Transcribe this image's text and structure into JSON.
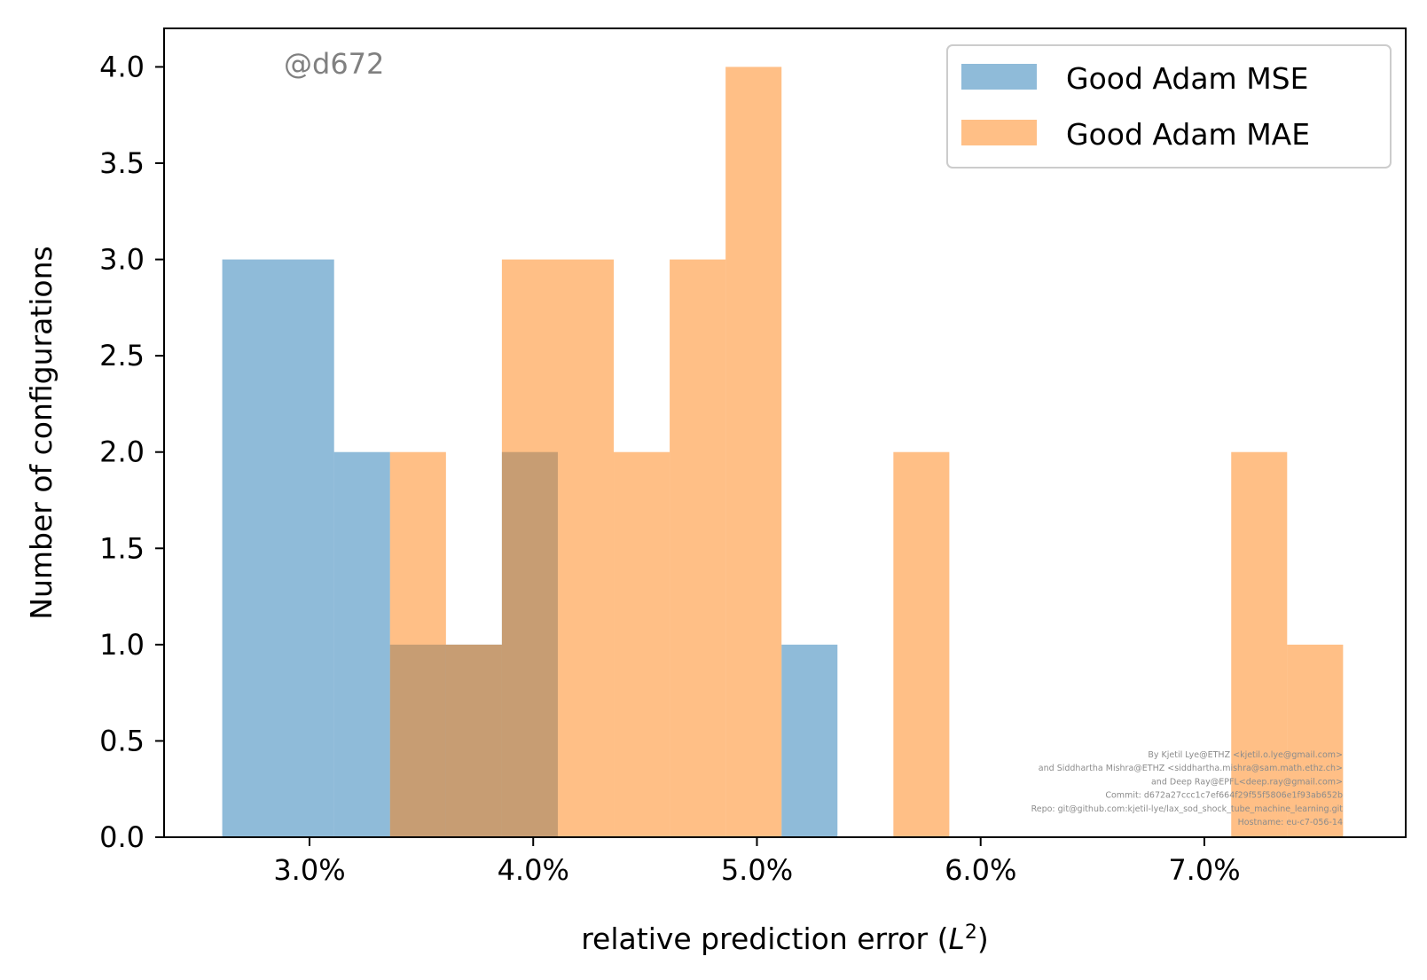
{
  "chart_data": {
    "type": "bar",
    "title": "",
    "xlabel": "relative prediction error (L²)",
    "ylabel": "Number of configurations",
    "xlim": [
      2.35,
      7.9
    ],
    "ylim": [
      0,
      4.2
    ],
    "x_ticks": [
      {
        "value": 3.0,
        "label": "3.0%"
      },
      {
        "value": 4.0,
        "label": "4.0%"
      },
      {
        "value": 5.0,
        "label": "5.0%"
      },
      {
        "value": 6.0,
        "label": "6.0%"
      },
      {
        "value": 7.0,
        "label": "7.0%"
      }
    ],
    "y_ticks": [
      {
        "value": 0.0,
        "label": "0.0"
      },
      {
        "value": 0.5,
        "label": "0.5"
      },
      {
        "value": 1.0,
        "label": "1.0"
      },
      {
        "value": 1.5,
        "label": "1.5"
      },
      {
        "value": 2.0,
        "label": "2.0"
      },
      {
        "value": 2.5,
        "label": "2.5"
      },
      {
        "value": 3.0,
        "label": "3.0"
      },
      {
        "value": 3.5,
        "label": "3.5"
      },
      {
        "value": 4.0,
        "label": "4.0"
      }
    ],
    "series": [
      {
        "name": "Good Adam MSE",
        "color": "#1f77b4",
        "opacity": 0.5,
        "bins": [
          {
            "x0": 2.61,
            "x1": 3.11,
            "count": 3
          },
          {
            "x0": 3.11,
            "x1": 3.36,
            "count": 2
          },
          {
            "x0": 3.36,
            "x1": 3.86,
            "count": 1
          },
          {
            "x0": 3.86,
            "x1": 4.11,
            "count": 2
          },
          {
            "x0": 5.11,
            "x1": 5.36,
            "count": 1
          }
        ]
      },
      {
        "name": "Good Adam MAE",
        "color": "#ff7f0e",
        "opacity": 0.5,
        "bins": [
          {
            "x0": 3.36,
            "x1": 3.61,
            "count": 2
          },
          {
            "x0": 3.61,
            "x1": 3.86,
            "count": 1
          },
          {
            "x0": 3.86,
            "x1": 4.36,
            "count": 3
          },
          {
            "x0": 4.36,
            "x1": 4.61,
            "count": 2
          },
          {
            "x0": 4.61,
            "x1": 4.86,
            "count": 3
          },
          {
            "x0": 4.86,
            "x1": 5.11,
            "count": 4
          },
          {
            "x0": 5.61,
            "x1": 5.86,
            "count": 2
          },
          {
            "x0": 7.12,
            "x1": 7.37,
            "count": 2
          },
          {
            "x0": 7.37,
            "x1": 7.62,
            "count": 1
          }
        ]
      }
    ],
    "legend_position": "top-right",
    "grid": false
  },
  "xlabel_main": "relative prediction error (",
  "xlabel_sym": "L",
  "xlabel_sup": "2",
  "xlabel_end": ")",
  "watermark": "@d672",
  "credits": [
    "By Kjetil Lye@ETHZ <kjetil.o.lye@gmail.com>",
    "and Siddhartha Mishra@ETHZ <siddhartha.mishra@sam.math.ethz.ch>",
    "and Deep Ray@EPFL<deep.ray@gmail.com>",
    "Commit: d672a27ccc1c7ef664f29f55f5806e1f93ab652b",
    "Repo: git@github.com:kjetil-lye/lax_sod_shock_tube_machine_learning.git",
    "Hostname: eu-c7-056-14"
  ]
}
